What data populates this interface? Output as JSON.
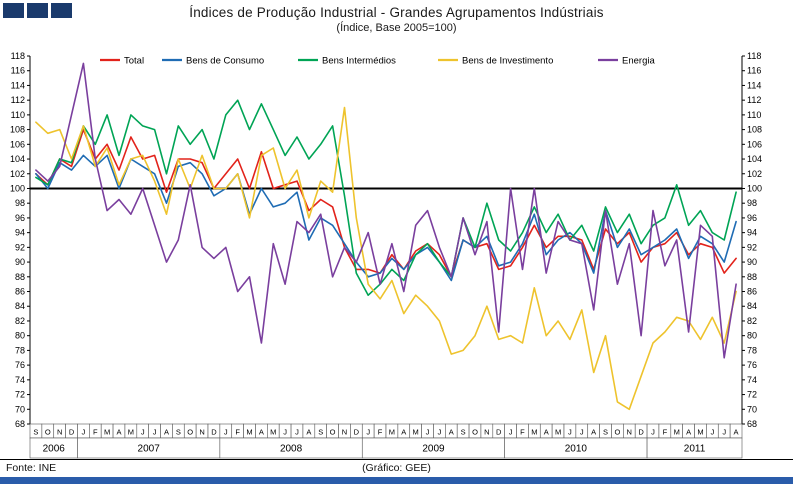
{
  "title": "Índices de Produção Industrial - Grandes Agrupamentos Indústriais",
  "subtitle": "(Índice, Base 2005=100)",
  "footer": {
    "source": "Fonte: INE",
    "credit": "(Gráfico: GEE)"
  },
  "chart_data": {
    "type": "line",
    "ylim": [
      68,
      118
    ],
    "ytick_step": 2,
    "baseline": 100,
    "grid": false,
    "legend_position": "top-inside",
    "x_months": [
      "S",
      "O",
      "N",
      "D",
      "J",
      "F",
      "M",
      "A",
      "M",
      "J",
      "J",
      "A",
      "S",
      "O",
      "N",
      "D",
      "J",
      "F",
      "M",
      "A",
      "M",
      "J",
      "J",
      "A",
      "S",
      "O",
      "N",
      "D",
      "J",
      "F",
      "M",
      "A",
      "M",
      "J",
      "J",
      "A",
      "S",
      "O",
      "N",
      "D",
      "J",
      "F",
      "M",
      "A",
      "M",
      "J",
      "J",
      "A",
      "S",
      "O",
      "N",
      "D",
      "J",
      "F",
      "M",
      "A",
      "M",
      "J",
      "J",
      "A"
    ],
    "x_years": [
      {
        "label": "2006",
        "months": 4
      },
      {
        "label": "2007",
        "months": 12
      },
      {
        "label": "2008",
        "months": 12
      },
      {
        "label": "2009",
        "months": 12
      },
      {
        "label": "2010",
        "months": 12
      },
      {
        "label": "2011",
        "months": 8
      }
    ],
    "series": [
      {
        "name": "Total",
        "color": "#e2231b",
        "values": [
          102,
          100.5,
          104,
          103,
          108,
          104,
          106,
          102.5,
          107,
          104,
          104.5,
          99.5,
          104,
          104,
          103.5,
          100,
          102,
          104,
          100,
          105,
          100,
          100.5,
          101,
          97,
          98.5,
          97.5,
          92,
          89,
          89,
          88.5,
          91,
          89,
          91.5,
          92.5,
          91,
          88,
          93,
          92,
          92.5,
          89,
          89.5,
          92,
          95,
          92,
          93.5,
          93.5,
          93,
          89,
          94.5,
          92.5,
          94,
          90,
          92,
          92.5,
          94,
          91,
          92.5,
          92,
          88.5,
          90.5
        ]
      },
      {
        "name": "Bens de Consumo",
        "color": "#1f6cb4",
        "values": [
          102,
          100,
          103.5,
          102.5,
          104.5,
          103,
          104.5,
          100,
          104,
          103,
          102,
          98,
          103,
          103.5,
          102,
          99,
          100,
          102,
          96.5,
          100,
          97.5,
          98,
          99.5,
          93,
          96,
          95,
          92.5,
          90,
          88,
          88.5,
          90.5,
          89,
          91,
          92,
          90,
          87.5,
          93,
          92,
          93.5,
          89.5,
          90,
          92.5,
          96.5,
          91,
          93,
          94,
          92.5,
          88.5,
          97,
          92,
          94.5,
          91,
          92,
          93,
          94.5,
          90.5,
          93.5,
          92.5,
          90,
          95.5
        ]
      },
      {
        "name": "Bens Intermédios",
        "color": "#00a455",
        "values": [
          101.5,
          100.5,
          104,
          103.5,
          108.5,
          106,
          110,
          104.5,
          110,
          108.5,
          108,
          102,
          108.5,
          106,
          108,
          104,
          110,
          112,
          108,
          111.5,
          108,
          104.5,
          107,
          104,
          106,
          108.5,
          99,
          88.5,
          85.5,
          87,
          89,
          87.5,
          91,
          92.5,
          90,
          88,
          96,
          92,
          98,
          93,
          91.5,
          94,
          97.5,
          94,
          96.5,
          93,
          95,
          91.5,
          97.5,
          94,
          96.5,
          92.5,
          95,
          96,
          100.5,
          95,
          97,
          94,
          93,
          99.5
        ]
      },
      {
        "name": "Bens de Investimento",
        "color": "#eec32d",
        "values": [
          109,
          107.5,
          108,
          104,
          108.5,
          103,
          105.5,
          100.5,
          104,
          104.5,
          101,
          96.5,
          104,
          100,
          104.5,
          100,
          100,
          102,
          96,
          104.5,
          105.5,
          100,
          102.5,
          96,
          101,
          99.5,
          111,
          96,
          87,
          85,
          87.5,
          83,
          85.5,
          84,
          82,
          77.5,
          78,
          80,
          84,
          79.5,
          80,
          79,
          86.5,
          80,
          82,
          79.5,
          83.5,
          75,
          80,
          71,
          70,
          74.5,
          79,
          80.5,
          82.5,
          82,
          79.5,
          82.5,
          79,
          86
        ]
      },
      {
        "name": "Energia",
        "color": "#7a3f9e",
        "values": [
          102.5,
          101,
          103,
          110,
          117,
          104,
          97,
          98.5,
          96.5,
          100,
          95,
          90,
          93,
          100.5,
          92,
          90.5,
          92,
          86,
          88,
          79,
          92.5,
          87,
          95.5,
          94,
          96.5,
          88,
          92,
          90,
          94,
          87,
          92.5,
          86,
          95,
          97,
          92,
          88,
          96,
          91,
          95.5,
          80.5,
          100,
          89,
          100,
          88.5,
          95.5,
          93,
          92.5,
          83.5,
          97,
          87,
          92.5,
          80,
          97,
          89.5,
          93,
          80.5,
          95,
          93.5,
          77,
          87
        ]
      }
    ]
  }
}
